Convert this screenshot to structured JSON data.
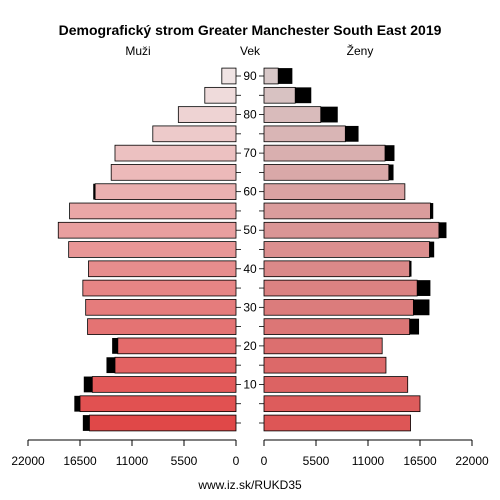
{
  "chart_data": {
    "type": "bar",
    "subtype": "population-pyramid",
    "title": "Demografický strom Greater Manchester South East 2019",
    "left_label": "Muži",
    "center_label": "Vek",
    "right_label": "Ženy",
    "footer": "www.iz.sk/RUKD35",
    "age_groups": [
      "0",
      "5",
      "10",
      "15",
      "20",
      "25",
      "30",
      "35",
      "40",
      "45",
      "50",
      "55",
      "60",
      "65",
      "70",
      "75",
      "80",
      "85",
      "90"
    ],
    "age_tick_labels": [
      "10",
      "20",
      "30",
      "40",
      "50",
      "60",
      "70",
      "80",
      "90"
    ],
    "x_ticks_left": [
      "22000",
      "16500",
      "11000",
      "5500",
      "0"
    ],
    "x_ticks_right": [
      "0",
      "5500",
      "11000",
      "16500",
      "22000"
    ],
    "xlim": [
      0,
      22000
    ],
    "series": [
      {
        "name": "Muži",
        "side": "left",
        "values": [
          15500,
          16500,
          15200,
          12800,
          12500,
          15700,
          15900,
          16200,
          15600,
          17700,
          18800,
          17600,
          14900,
          13200,
          12800,
          8800,
          6100,
          3300,
          1500
        ],
        "excess": [
          700,
          600,
          900,
          900,
          600,
          0,
          0,
          0,
          0,
          0,
          0,
          0,
          200,
          0,
          0,
          0,
          0,
          0,
          0
        ]
      },
      {
        "name": "Ženy",
        "side": "right",
        "values": [
          15500,
          16500,
          15200,
          12900,
          12500,
          15400,
          15800,
          16200,
          15400,
          17500,
          18500,
          17600,
          14900,
          13200,
          12800,
          8600,
          6000,
          3300,
          1500
        ],
        "excess": [
          0,
          0,
          0,
          0,
          0,
          1000,
          1700,
          1400,
          200,
          500,
          800,
          300,
          0,
          500,
          1000,
          1400,
          1800,
          1700,
          1500
        ]
      }
    ],
    "colors": {
      "excess": "#000000",
      "outline": "#000000",
      "male_gradient": [
        "#e04848",
        "#f0e4e4"
      ],
      "female_gradient": [
        "#dd5656",
        "#d8c8c8"
      ]
    }
  }
}
